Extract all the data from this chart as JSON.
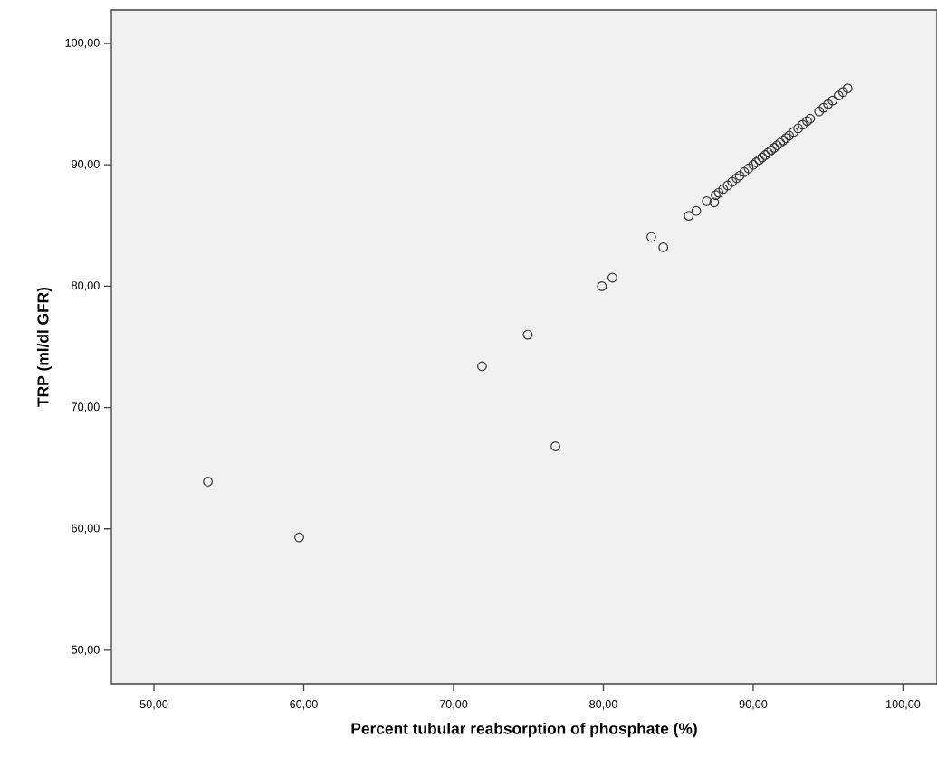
{
  "chart_data": {
    "type": "scatter",
    "xlabel": "Percent tubular reabsorption of phosphate (%)",
    "ylabel": "TRP (ml/dl GFR)",
    "xlim": [
      47.16,
      102.27
    ],
    "ylim": [
      47.24,
      102.76
    ],
    "xticks": [
      {
        "value": 50,
        "label": "50,00"
      },
      {
        "value": 60,
        "label": "60,00"
      },
      {
        "value": 70,
        "label": "70,00"
      },
      {
        "value": 80,
        "label": "80,00"
      },
      {
        "value": 90,
        "label": "90,00"
      },
      {
        "value": 100,
        "label": "100,00"
      }
    ],
    "yticks": [
      {
        "value": 50,
        "label": "50,00"
      },
      {
        "value": 60,
        "label": "60,00"
      },
      {
        "value": 70,
        "label": "70,00"
      },
      {
        "value": 80,
        "label": "80,00"
      },
      {
        "value": 90,
        "label": "90,00"
      },
      {
        "value": 100,
        "label": "100,00"
      }
    ],
    "grid": false,
    "marker": "circle",
    "series": [
      {
        "color": "#333333",
        "x": [
          53.6,
          59.7,
          71.9,
          74.95,
          76.8,
          79.9,
          80.6,
          83.2,
          84.0,
          85.7,
          86.2,
          86.9,
          87.4,
          87.5,
          87.7,
          88.0,
          88.3,
          88.6,
          88.9,
          89.1,
          89.4,
          89.7,
          90.0,
          90.2,
          90.4,
          90.6,
          90.8,
          91.0,
          91.2,
          91.4,
          91.6,
          91.8,
          92.0,
          92.2,
          92.4,
          92.7,
          93.0,
          93.3,
          93.6,
          93.8,
          94.4,
          94.7,
          95.0,
          95.3,
          95.7,
          96.0,
          96.3
        ],
        "values": [
          63.9,
          59.3,
          73.4,
          76.0,
          66.8,
          80.0,
          80.7,
          84.05,
          83.2,
          85.8,
          86.2,
          87.0,
          86.9,
          87.5,
          87.7,
          88.0,
          88.3,
          88.6,
          88.9,
          89.1,
          89.4,
          89.7,
          90.0,
          90.2,
          90.4,
          90.6,
          90.8,
          91.0,
          91.2,
          91.4,
          91.6,
          91.8,
          92.0,
          92.2,
          92.4,
          92.7,
          93.0,
          93.3,
          93.6,
          93.8,
          94.4,
          94.7,
          95.0,
          95.3,
          95.7,
          96.0,
          96.3
        ]
      }
    ]
  }
}
